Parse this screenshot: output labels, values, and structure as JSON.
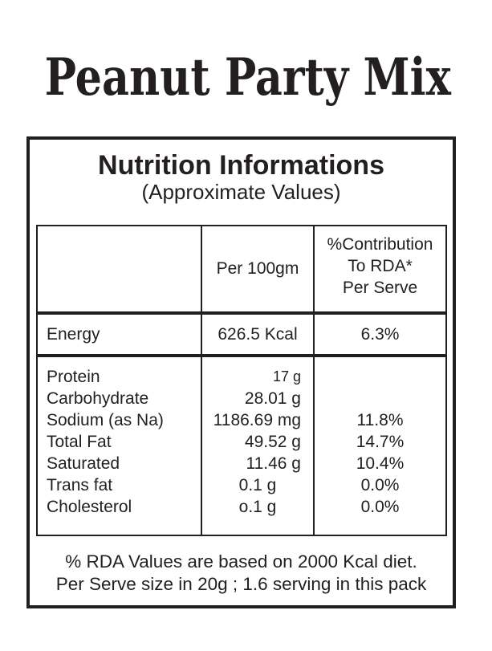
{
  "title": "Peanut Party Mix",
  "panel": {
    "heading": "Nutrition Informations",
    "subheading": "(Approximate Values)"
  },
  "table": {
    "columns": {
      "item": "",
      "per100": "Per 100gm",
      "rda_lines": [
        "%Contribution",
        "To RDA*",
        "Per Serve"
      ]
    },
    "energy": {
      "label": "Energy",
      "per100": "626.5 Kcal",
      "rda": "6.3%"
    },
    "nutrients": [
      {
        "label": "Protein",
        "per100": "17 g",
        "rda": ""
      },
      {
        "label": "Carbohydrate",
        "per100": "28.01 g",
        "rda": ""
      },
      {
        "label": "Sodium (as Na)",
        "per100": "1186.69 mg",
        "rda": "11.8%"
      },
      {
        "label": "Total Fat",
        "per100": "49.52 g",
        "rda": "14.7%"
      },
      {
        "label": "Saturated",
        "per100": "11.46 g",
        "rda": "10.4%"
      },
      {
        "label": "Trans fat",
        "per100": "0.1 g",
        "rda": "0.0%"
      },
      {
        "label": "Cholesterol",
        "per100": "o.1 g",
        "rda": "0.0%"
      }
    ]
  },
  "footnote": [
    "% RDA Values are based on 2000 Kcal diet.",
    "Per Serve size in 20g ; 1.6 serving in this pack"
  ],
  "colors": {
    "ink": "#231f20",
    "background": "#ffffff"
  }
}
